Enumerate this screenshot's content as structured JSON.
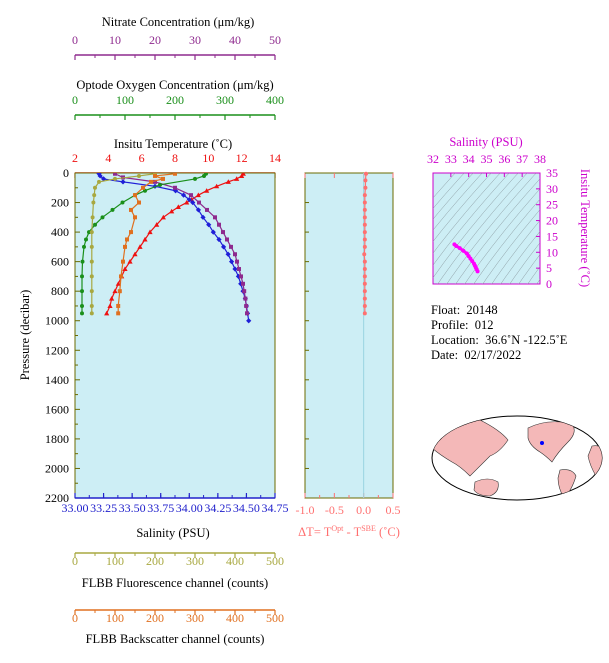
{
  "colors": {
    "nitrate": "#8e2a8e",
    "oxygen": "#1a8f1a",
    "temperature": "#ee1111",
    "salinity_axis": "#2222cc",
    "salinity_profile": "#1f1fd8",
    "fluorescence": "#a8a840",
    "backscatter": "#e07020",
    "delta_t": "#ff7070",
    "plot_bg": "#cdeef5",
    "ts_highlight": "#ff00ff",
    "ts_axis": "#cc00cc",
    "land": "#f4b8b8"
  },
  "axis_titles": {
    "nitrate": "Nitrate Concentration (μm/kg)",
    "oxygen": "Optode Oxygen Concentration (μm/kg)",
    "temperature": "Insitu Temperature (˚C)",
    "pressure": "Pressure (decibar)",
    "salinity": "Salinity (PSU)",
    "delta_t_prefix": "ΔT= T",
    "delta_t_sup1": "Opt",
    "delta_t_mid": " - T",
    "delta_t_sup2": "SBE",
    "delta_t_suffix": " (˚C)",
    "fluorescence": "FLBB Fluorescence channel (counts)",
    "backscatter": "FLBB Backscatter channel (counts)",
    "ts_salinity": "Salinity (PSU)",
    "ts_temperature": "Insitu Temperature (˚C)"
  },
  "info": {
    "float_label": "Float:",
    "float_value": "20148",
    "profile_label": "Profile:",
    "profile_value": "012",
    "location_label": "Location:",
    "location_value": "36.6˚N  -122.5˚E",
    "date_label": "Date:",
    "date_value": "02/17/2022"
  },
  "chart_data": [
    {
      "type": "line",
      "title": "",
      "axes": {
        "pressure": {
          "label": "Pressure (decibar)",
          "range": [
            0,
            2200
          ],
          "ticks": [
            0,
            200,
            400,
            600,
            800,
            1000,
            1200,
            1400,
            1600,
            1800,
            2000,
            2200
          ],
          "inverted": true
        },
        "salinity": {
          "label": "Salinity (PSU)",
          "range": [
            33.0,
            34.75
          ],
          "ticks": [
            "33.00",
            "33.25",
            "33.50",
            "33.75",
            "34.00",
            "34.25",
            "34.50",
            "34.75"
          ]
        },
        "temperature": {
          "label": "Insitu Temperature (˚C)",
          "range": [
            2,
            14
          ],
          "ticks": [
            2,
            4,
            6,
            8,
            10,
            12,
            14
          ]
        },
        "oxygen": {
          "label": "Optode Oxygen Concentration (μm/kg)",
          "range": [
            0,
            400
          ],
          "ticks": [
            0,
            100,
            200,
            300,
            400
          ]
        },
        "nitrate": {
          "label": "Nitrate Concentration (μm/kg)",
          "range": [
            0,
            50
          ],
          "ticks": [
            0,
            10,
            20,
            30,
            40,
            50
          ]
        },
        "fluorescence": {
          "label": "FLBB Fluorescence channel (counts)",
          "range": [
            0,
            500
          ],
          "ticks": [
            0,
            100,
            200,
            300,
            400,
            500
          ]
        },
        "backscatter": {
          "label": "FLBB Backscatter channel (counts)",
          "range": [
            0,
            500
          ],
          "ticks": [
            0,
            100,
            200,
            300,
            400,
            500
          ]
        }
      },
      "series": [
        {
          "key": "temperature",
          "axis": "temperature",
          "marker": "triangle",
          "pressure": [
            5,
            20,
            40,
            60,
            90,
            120,
            150,
            180,
            200,
            230,
            260,
            300,
            350,
            400,
            450,
            500,
            550,
            600,
            650,
            700,
            750,
            800,
            850,
            900,
            950
          ],
          "values": [
            12.1,
            12.0,
            11.7,
            11.2,
            10.5,
            9.9,
            9.4,
            9.0,
            8.7,
            8.2,
            7.8,
            7.3,
            6.9,
            6.5,
            6.2,
            5.9,
            5.6,
            5.3,
            5.0,
            4.8,
            4.6,
            4.4,
            4.2,
            4.1,
            3.9
          ]
        },
        {
          "key": "salinity",
          "axis": "salinity",
          "marker": "diamond",
          "pressure": [
            5,
            20,
            40,
            60,
            90,
            120,
            150,
            180,
            200,
            250,
            300,
            350,
            400,
            450,
            500,
            550,
            600,
            650,
            700,
            750,
            800,
            850,
            900,
            950,
            1000
          ],
          "values": [
            33.21,
            33.22,
            33.25,
            33.42,
            33.7,
            33.88,
            33.95,
            34.0,
            34.03,
            34.08,
            34.12,
            34.17,
            34.21,
            34.26,
            34.3,
            34.34,
            34.37,
            34.4,
            34.43,
            34.45,
            34.47,
            34.49,
            34.5,
            34.51,
            34.52
          ]
        },
        {
          "key": "nitrate",
          "axis": "nitrate",
          "marker": "square",
          "pressure": [
            5,
            30,
            60,
            100,
            150,
            200,
            250,
            300,
            350,
            400,
            450,
            500,
            550,
            600,
            650,
            700,
            750,
            800,
            850,
            900,
            950
          ],
          "values": [
            10,
            12,
            20,
            25,
            29,
            31,
            33,
            35,
            36,
            37,
            38,
            39,
            40,
            40.5,
            41,
            41.5,
            42,
            42.3,
            42.6,
            42.8,
            43
          ]
        },
        {
          "key": "oxygen",
          "axis": "oxygen",
          "marker": "circle",
          "pressure": [
            5,
            20,
            40,
            80,
            120,
            150,
            200,
            250,
            300,
            350,
            400,
            450,
            500,
            600,
            700,
            800,
            900,
            950
          ],
          "values": [
            262,
            258,
            240,
            170,
            140,
            120,
            95,
            75,
            55,
            40,
            28,
            22,
            18,
            15,
            14,
            14,
            14,
            14
          ]
        },
        {
          "key": "fluorescence",
          "axis": "fluorescence",
          "marker": "circle",
          "pressure": [
            5,
            20,
            40,
            60,
            100,
            150,
            200,
            300,
            400,
            500,
            600,
            700,
            800,
            900,
            950
          ],
          "values": [
            200,
            160,
            100,
            60,
            50,
            48,
            46,
            44,
            42,
            42,
            42,
            42,
            42,
            42,
            42
          ]
        },
        {
          "key": "backscatter",
          "axis": "backscatter",
          "marker": "square",
          "pressure": [
            5,
            20,
            40,
            60,
            100,
            150,
            200,
            250,
            300,
            400,
            450,
            500,
            600,
            700,
            800,
            900,
            950
          ],
          "values": [
            250,
            200,
            220,
            190,
            170,
            150,
            160,
            140,
            150,
            140,
            130,
            125,
            120,
            115,
            112,
            108,
            108
          ]
        }
      ]
    },
    {
      "type": "line",
      "title": "",
      "axes": {
        "x": {
          "label": "ΔT= T^Opt - T^SBE (˚C)",
          "range": [
            -1.0,
            0.5
          ],
          "ticks": [
            "-1.0",
            "-0.5",
            "0.0",
            "0.5"
          ]
        },
        "y": {
          "label": "Pressure (decibar)",
          "range": [
            0,
            2200
          ],
          "inverted": true
        }
      },
      "series": [
        {
          "key": "delta_t",
          "marker": "circle",
          "pressure": [
            5,
            50,
            100,
            150,
            200,
            250,
            300,
            350,
            400,
            450,
            500,
            550,
            600,
            650,
            700,
            750,
            800,
            850,
            900,
            950
          ],
          "values": [
            0.04,
            0.03,
            0.03,
            0.02,
            0.02,
            0.02,
            0.02,
            0.02,
            0.02,
            0.02,
            0.02,
            0.01,
            0.02,
            0.02,
            0.02,
            0.02,
            0.02,
            0.02,
            0.02,
            0.02
          ]
        }
      ]
    },
    {
      "type": "scatter",
      "title": "",
      "axes": {
        "x": {
          "label": "Salinity (PSU)",
          "range": [
            32,
            38
          ],
          "ticks": [
            32,
            33,
            34,
            35,
            36,
            37,
            38
          ]
        },
        "y": {
          "label": "Insitu Temperature (˚C)",
          "range": [
            0,
            35
          ],
          "ticks": [
            0,
            5,
            10,
            15,
            20,
            25,
            30,
            35
          ]
        }
      },
      "background": "potential density contours (grey)",
      "series": [
        {
          "key": "ts",
          "salinity": [
            33.2,
            33.3,
            33.5,
            33.7,
            33.9,
            34.0,
            34.1,
            34.2,
            34.3,
            34.35,
            34.4,
            34.45,
            34.5
          ],
          "temperature": [
            12.5,
            12.0,
            11.3,
            10.5,
            9.6,
            8.8,
            8.0,
            7.2,
            6.4,
            5.8,
            5.2,
            4.6,
            4.0
          ]
        }
      ]
    }
  ]
}
